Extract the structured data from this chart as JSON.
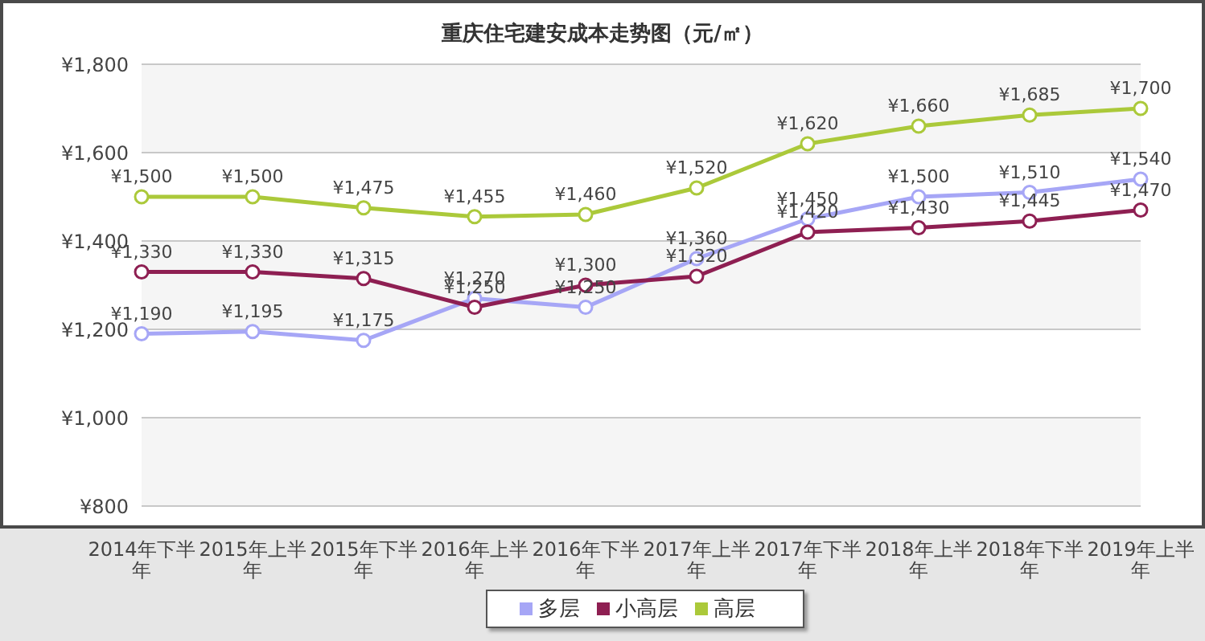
{
  "chart_data": {
    "type": "line",
    "title": "重庆住宅建安成本走势图（元/㎡）",
    "categories": [
      "2014年下半年",
      "2015年上半年",
      "2015年下半年",
      "2016年上半年",
      "2016年下半年",
      "2017年上半年",
      "2017年下半年",
      "2018年上半年",
      "2018年下半年",
      "2019年上半年"
    ],
    "series": [
      {
        "name": "多层",
        "color": "#a6a6f6",
        "values": [
          1190,
          1195,
          1175,
          1270,
          1250,
          1360,
          1450,
          1500,
          1510,
          1540
        ],
        "value_labels": [
          "¥1,190",
          "¥1,195",
          "¥1,175",
          "¥1,270",
          "¥1,250",
          "¥1,360",
          "¥1,450",
          "¥1,500",
          "¥1,510",
          "¥1,540"
        ]
      },
      {
        "name": "小高层",
        "color": "#8e1f52",
        "values": [
          1330,
          1330,
          1315,
          1250,
          1300,
          1320,
          1420,
          1430,
          1445,
          1470
        ],
        "value_labels": [
          "¥1,330",
          "¥1,330",
          "¥1,315",
          "¥1,250",
          "¥1,300",
          "¥1,320",
          "¥1,420",
          "¥1,430",
          "¥1,445",
          "¥1,470"
        ]
      },
      {
        "name": "高层",
        "color": "#abc93a",
        "values": [
          1500,
          1500,
          1475,
          1455,
          1460,
          1520,
          1620,
          1660,
          1685,
          1700
        ],
        "value_labels": [
          "¥1,500",
          "¥1,500",
          "¥1,475",
          "¥1,455",
          "¥1,460",
          "¥1,520",
          "¥1,620",
          "¥1,660",
          "¥1,685",
          "¥1,700"
        ]
      }
    ],
    "ylim": [
      800,
      1800
    ],
    "yticks": [
      {
        "value": 800,
        "label": "¥800"
      },
      {
        "value": 1000,
        "label": "¥1,000"
      },
      {
        "value": 1200,
        "label": "¥1,200"
      },
      {
        "value": 1400,
        "label": "¥1,400"
      },
      {
        "value": 1600,
        "label": "¥1,600"
      },
      {
        "value": 1800,
        "label": "¥1,800"
      }
    ],
    "grid": "y",
    "legend": "bottom",
    "marker": "circle",
    "line_style": "solid"
  }
}
